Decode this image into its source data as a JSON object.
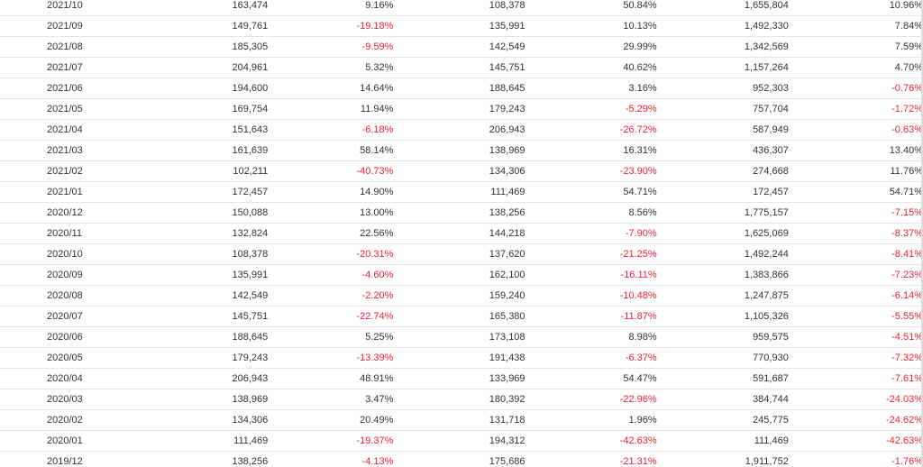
{
  "colors": {
    "text": "#333333",
    "negative": "#ee2233",
    "row_border": "#e6e6e6"
  },
  "rows": [
    {
      "month": "2021/10",
      "v1": "163,474",
      "p1": "9.16%",
      "v2": "108,378",
      "p2": "50.84%",
      "v3": "1,655,804",
      "p3": "10.96%"
    },
    {
      "month": "2021/09",
      "v1": "149,761",
      "p1": "-19.18%",
      "v2": "135,991",
      "p2": "10.13%",
      "v3": "1,492,330",
      "p3": "7.84%"
    },
    {
      "month": "2021/08",
      "v1": "185,305",
      "p1": "-9.59%",
      "v2": "142,549",
      "p2": "29.99%",
      "v3": "1,342,569",
      "p3": "7.59%"
    },
    {
      "month": "2021/07",
      "v1": "204,961",
      "p1": "5.32%",
      "v2": "145,751",
      "p2": "40.62%",
      "v3": "1,157,264",
      "p3": "4.70%"
    },
    {
      "month": "2021/06",
      "v1": "194,600",
      "p1": "14.64%",
      "v2": "188,645",
      "p2": "3.16%",
      "v3": "952,303",
      "p3": "-0.76%"
    },
    {
      "month": "2021/05",
      "v1": "169,754",
      "p1": "11.94%",
      "v2": "179,243",
      "p2": "-5.29%",
      "v3": "757,704",
      "p3": "-1.72%"
    },
    {
      "month": "2021/04",
      "v1": "151,643",
      "p1": "-6.18%",
      "v2": "206,943",
      "p2": "-26.72%",
      "v3": "587,949",
      "p3": "-0.63%"
    },
    {
      "month": "2021/03",
      "v1": "161,639",
      "p1": "58.14%",
      "v2": "138,969",
      "p2": "16.31%",
      "v3": "436,307",
      "p3": "13.40%"
    },
    {
      "month": "2021/02",
      "v1": "102,211",
      "p1": "-40.73%",
      "v2": "134,306",
      "p2": "-23.90%",
      "v3": "274,668",
      "p3": "11.76%"
    },
    {
      "month": "2021/01",
      "v1": "172,457",
      "p1": "14.90%",
      "v2": "111,469",
      "p2": "54.71%",
      "v3": "172,457",
      "p3": "54.71%"
    },
    {
      "month": "2020/12",
      "v1": "150,088",
      "p1": "13.00%",
      "v2": "138,256",
      "p2": "8.56%",
      "v3": "1,775,157",
      "p3": "-7.15%"
    },
    {
      "month": "2020/11",
      "v1": "132,824",
      "p1": "22.56%",
      "v2": "144,218",
      "p2": "-7.90%",
      "v3": "1,625,069",
      "p3": "-8.37%"
    },
    {
      "month": "2020/10",
      "v1": "108,378",
      "p1": "-20.31%",
      "v2": "137,620",
      "p2": "-21.25%",
      "v3": "1,492,244",
      "p3": "-8.41%"
    },
    {
      "month": "2020/09",
      "v1": "135,991",
      "p1": "-4.60%",
      "v2": "162,100",
      "p2": "-16.11%",
      "v3": "1,383,866",
      "p3": "-7.23%"
    },
    {
      "month": "2020/08",
      "v1": "142,549",
      "p1": "-2.20%",
      "v2": "159,240",
      "p2": "-10.48%",
      "v3": "1,247,875",
      "p3": "-6.14%"
    },
    {
      "month": "2020/07",
      "v1": "145,751",
      "p1": "-22.74%",
      "v2": "165,380",
      "p2": "-11.87%",
      "v3": "1,105,326",
      "p3": "-5.55%"
    },
    {
      "month": "2020/06",
      "v1": "188,645",
      "p1": "5.25%",
      "v2": "173,108",
      "p2": "8.98%",
      "v3": "959,575",
      "p3": "-4.51%"
    },
    {
      "month": "2020/05",
      "v1": "179,243",
      "p1": "-13.39%",
      "v2": "191,438",
      "p2": "-6.37%",
      "v3": "770,930",
      "p3": "-7.32%"
    },
    {
      "month": "2020/04",
      "v1": "206,943",
      "p1": "48.91%",
      "v2": "133,969",
      "p2": "54.47%",
      "v3": "591,687",
      "p3": "-7.61%"
    },
    {
      "month": "2020/03",
      "v1": "138,969",
      "p1": "3.47%",
      "v2": "180,392",
      "p2": "-22.96%",
      "v3": "384,744",
      "p3": "-24.03%"
    },
    {
      "month": "2020/02",
      "v1": "134,306",
      "p1": "20.49%",
      "v2": "131,718",
      "p2": "1.96%",
      "v3": "245,775",
      "p3": "-24.62%"
    },
    {
      "month": "2020/01",
      "v1": "111,469",
      "p1": "-19.37%",
      "v2": "194,312",
      "p2": "-42.63%",
      "v3": "111,469",
      "p3": "-42.63%"
    },
    {
      "month": "2019/12",
      "v1": "138,256",
      "p1": "-4.13%",
      "v2": "175,686",
      "p2": "-21.31%",
      "v3": "1,911,752",
      "p3": "-1.76%"
    }
  ]
}
